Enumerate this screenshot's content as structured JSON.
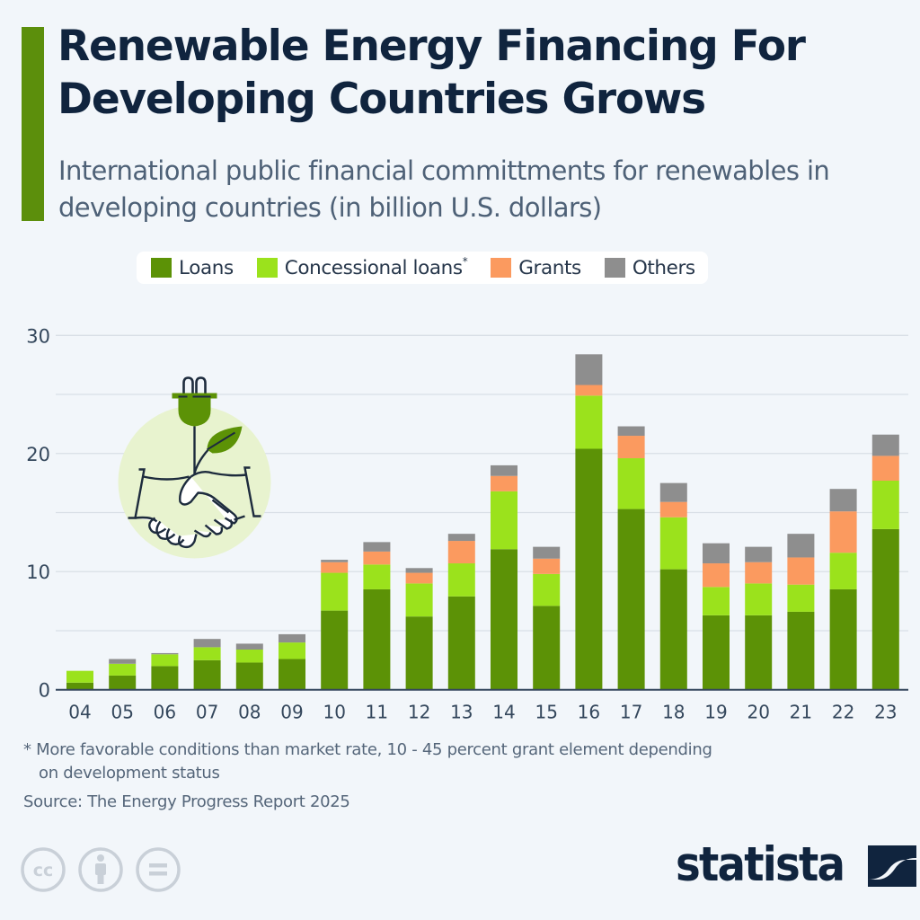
{
  "header": {
    "title": "Renewable Energy Financing For Developing Countries Grows",
    "subtitle": "International public financial committments for renewables in developing countries (in billion U.S. dollars)"
  },
  "legend": {
    "items": [
      {
        "label": "Loans",
        "color": "#5c9206",
        "sup": ""
      },
      {
        "label": "Concessional loans",
        "color": "#9be21c",
        "sup": "*"
      },
      {
        "label": "Grants",
        "color": "#fb9a5f",
        "sup": ""
      },
      {
        "label": "Others",
        "color": "#8e8e8e",
        "sup": ""
      }
    ]
  },
  "chart_data": {
    "type": "bar",
    "stacked": true,
    "title": "Renewable Energy Financing For Developing Countries Grows",
    "subtitle": "International public financial committments for renewables in developing countries (in billion U.S. dollars)",
    "xlabel": "",
    "ylabel": "",
    "ylim": [
      0,
      30
    ],
    "yticks": [
      0,
      10,
      20,
      30
    ],
    "grid": true,
    "grid_step": 5,
    "legend_position": "top-center",
    "categories": [
      "04",
      "05",
      "06",
      "07",
      "08",
      "09",
      "10",
      "11",
      "12",
      "13",
      "14",
      "15",
      "16",
      "17",
      "18",
      "19",
      "20",
      "21",
      "22",
      "23"
    ],
    "series": [
      {
        "name": "Loans",
        "color": "#5c9206",
        "values": [
          0.6,
          1.2,
          2.0,
          2.5,
          2.3,
          2.6,
          6.7,
          8.5,
          6.2,
          7.9,
          11.9,
          7.1,
          20.4,
          15.3,
          10.2,
          6.3,
          6.3,
          6.6,
          8.5,
          13.6
        ]
      },
      {
        "name": "Concessional loans*",
        "color": "#9be21c",
        "values": [
          1.0,
          1.0,
          1.0,
          1.1,
          1.1,
          1.4,
          3.2,
          2.1,
          2.8,
          2.8,
          4.9,
          2.7,
          4.5,
          4.3,
          4.4,
          2.4,
          2.7,
          2.3,
          3.1,
          4.1
        ]
      },
      {
        "name": "Grants",
        "color": "#fb9a5f",
        "values": [
          0.0,
          0.0,
          0.0,
          0.0,
          0.0,
          0.0,
          0.9,
          1.1,
          0.9,
          1.9,
          1.3,
          1.3,
          0.9,
          1.9,
          1.3,
          2.0,
          1.8,
          2.3,
          3.5,
          2.1
        ]
      },
      {
        "name": "Others",
        "color": "#8e8e8e",
        "values": [
          0.0,
          0.4,
          0.1,
          0.7,
          0.5,
          0.7,
          0.2,
          0.8,
          0.4,
          0.6,
          0.9,
          1.0,
          2.6,
          0.8,
          1.6,
          1.7,
          1.3,
          2.0,
          1.9,
          1.8
        ]
      }
    ]
  },
  "footer": {
    "footnote_line1": "* More favorable conditions than market rate, 10 - 45 percent grant element depending",
    "footnote_line2": "on development status",
    "source": "Source: The Energy Progress Report 2025",
    "logo": "statista",
    "license_icons": [
      "cc-icon",
      "attribution-icon",
      "no-derivatives-icon"
    ]
  },
  "illustration": {
    "name": "handshake-plug-plant-icon",
    "circle_color": "#e8f3cf",
    "accent_color": "#5c9206",
    "line_color": "#1d2b3d"
  },
  "colors": {
    "accent": "#5c8f0c",
    "title": "#10243e",
    "subtitle": "#4e6177",
    "background": "#f2f6fa"
  }
}
